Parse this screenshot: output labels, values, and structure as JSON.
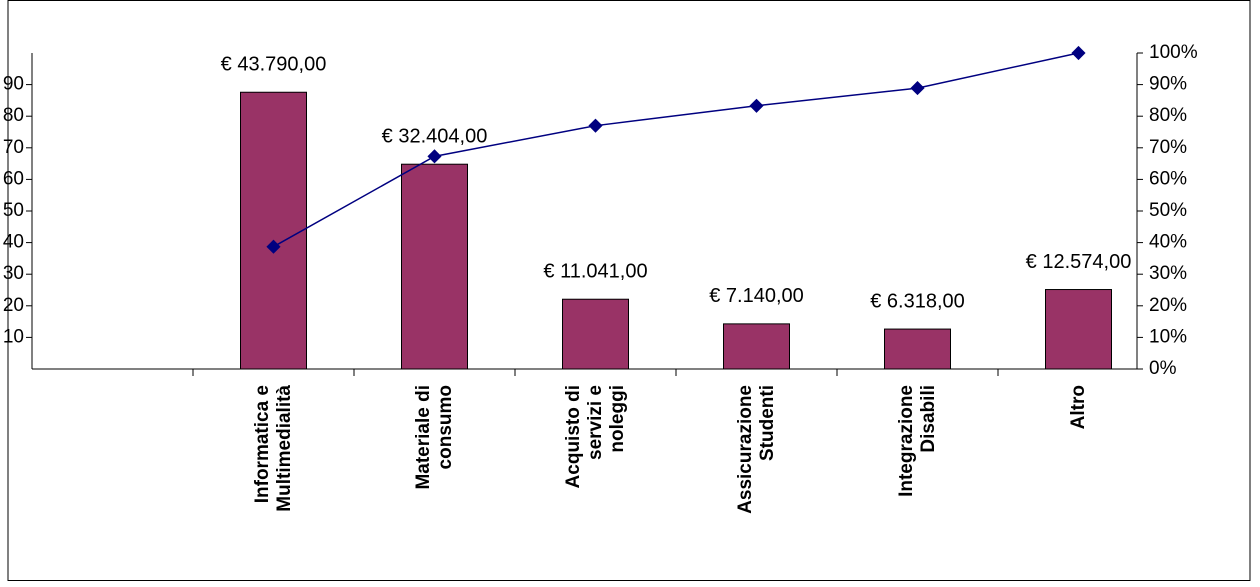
{
  "chart_data": {
    "type": "bar",
    "categories": [
      null,
      "Informatica e\nMultimedialità",
      "Materiale di\nconsumo",
      "Acquisto di\nservizi e\nnoleggi",
      "Assicurazione\nStudenti",
      "Integrazione\nDisabili",
      "Altro"
    ],
    "series": [
      {
        "type": "bar",
        "color": "#993366",
        "values": [
          null,
          43790,
          32404,
          11041,
          7140,
          6318,
          12574
        ],
        "value_labels": [
          null,
          "€ 43.790,00",
          "€ 32.404,00",
          "€ 11.041,00",
          "€ 7.140,00",
          "€ 6.318,00",
          "€ 12.574,00"
        ]
      },
      {
        "type": "line",
        "axis": "y2",
        "color": "#000080",
        "values": [
          null,
          38.7,
          67.3,
          77.0,
          83.3,
          88.9,
          100
        ]
      }
    ],
    "ylim": [
      0,
      50000
    ],
    "yticks": [
      {
        "value": 5000,
        "label": "10"
      },
      {
        "value": 10000,
        "label": "20"
      },
      {
        "value": 15000,
        "label": "30"
      },
      {
        "value": 20000,
        "label": "40"
      },
      {
        "value": 25000,
        "label": "50"
      },
      {
        "value": 30000,
        "label": "60"
      },
      {
        "value": 35000,
        "label": "70"
      },
      {
        "value": 40000,
        "label": "80"
      },
      {
        "value": 45000,
        "label": "90"
      }
    ],
    "y2lim": [
      0,
      100
    ],
    "y2ticks": [
      {
        "value": 0,
        "label": "0%"
      },
      {
        "value": 10,
        "label": "10%"
      },
      {
        "value": 20,
        "label": "20%"
      },
      {
        "value": 30,
        "label": "30%"
      },
      {
        "value": 40,
        "label": "40%"
      },
      {
        "value": 50,
        "label": "50%"
      },
      {
        "value": 60,
        "label": "60%"
      },
      {
        "value": 70,
        "label": "70%"
      },
      {
        "value": 80,
        "label": "80%"
      },
      {
        "value": 90,
        "label": "90%"
      },
      {
        "value": 100,
        "label": "100%"
      }
    ]
  }
}
